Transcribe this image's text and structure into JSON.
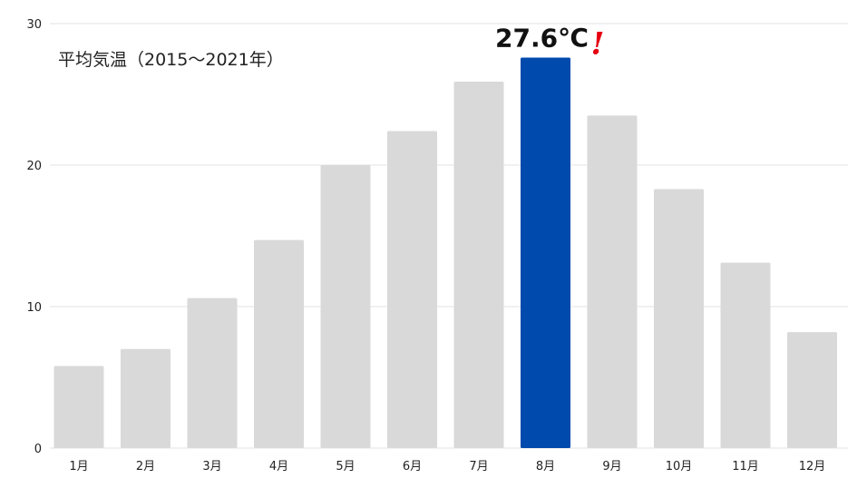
{
  "chart_data": {
    "type": "bar",
    "title": "平均気温（2015〜2021年）",
    "xlabel": "",
    "ylabel": "",
    "categories": [
      "1月",
      "2月",
      "3月",
      "4月",
      "5月",
      "6月",
      "7月",
      "8月",
      "9月",
      "10月",
      "11月",
      "12月"
    ],
    "values": [
      5.8,
      7.0,
      10.6,
      14.7,
      20.0,
      22.4,
      25.9,
      27.6,
      23.5,
      18.3,
      13.1,
      8.2
    ],
    "ylim": [
      0,
      30
    ],
    "yticks": [
      "0",
      "10",
      "20",
      "30"
    ],
    "grid": true,
    "colors": {
      "bar": "#d9d9d9",
      "highlight": "#004aad",
      "exclaim": "#e60012"
    },
    "highlight": {
      "index": 7,
      "label": "27.6℃",
      "mark": "!"
    }
  }
}
